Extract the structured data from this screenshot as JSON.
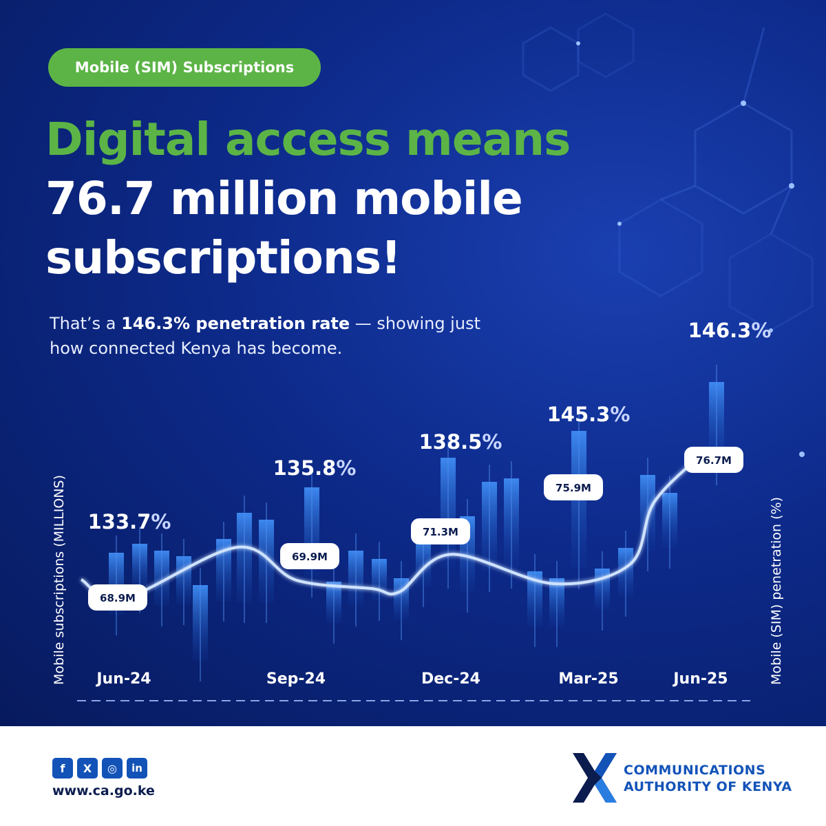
{
  "badge": "Mobile (SIM) Subscriptions",
  "headline": {
    "line1": "Digital access means",
    "line2": "76.7 million mobile",
    "line3": "subscriptions!"
  },
  "subtext": {
    "prefix": "That’s a ",
    "highlight": "146.3% penetration rate",
    "suffix": " — showing just how connected Kenya has become."
  },
  "chart_data": {
    "type": "line",
    "categories": [
      "Jun-24",
      "Sep-24",
      "Dec-24",
      "Mar-25",
      "Jun-25"
    ],
    "series": [
      {
        "name": "Mobile subscriptions (MILLIONS)",
        "values": [
          68.9,
          69.9,
          71.3,
          75.9,
          76.7
        ],
        "labels": [
          "68.9M",
          "69.9M",
          "71.3M",
          "75.9M",
          "76.7M"
        ]
      },
      {
        "name": "Mobile (SIM) penetration (%)",
        "values": [
          133.7,
          135.8,
          138.5,
          145.3,
          146.3
        ],
        "labels": [
          "133.7",
          "135.8",
          "138.5",
          "145.3",
          "146.3"
        ],
        "unit": "%"
      }
    ],
    "ylabel_left": "Mobile subscriptions (MILLIONS)",
    "ylabel_right": "Mobile (SIM) penetration (%)",
    "grid": false,
    "legend": "none"
  },
  "footer": {
    "social": [
      "f",
      "X",
      "◎",
      "in"
    ],
    "url": "www.ca.go.ke",
    "org_line1": "COMMUNICATIONS",
    "org_line2": "AUTHORITY OF KENYA"
  },
  "colors": {
    "background": "#0d2a8a",
    "accent_green": "#5cb446",
    "brand_blue": "#1353b8"
  }
}
